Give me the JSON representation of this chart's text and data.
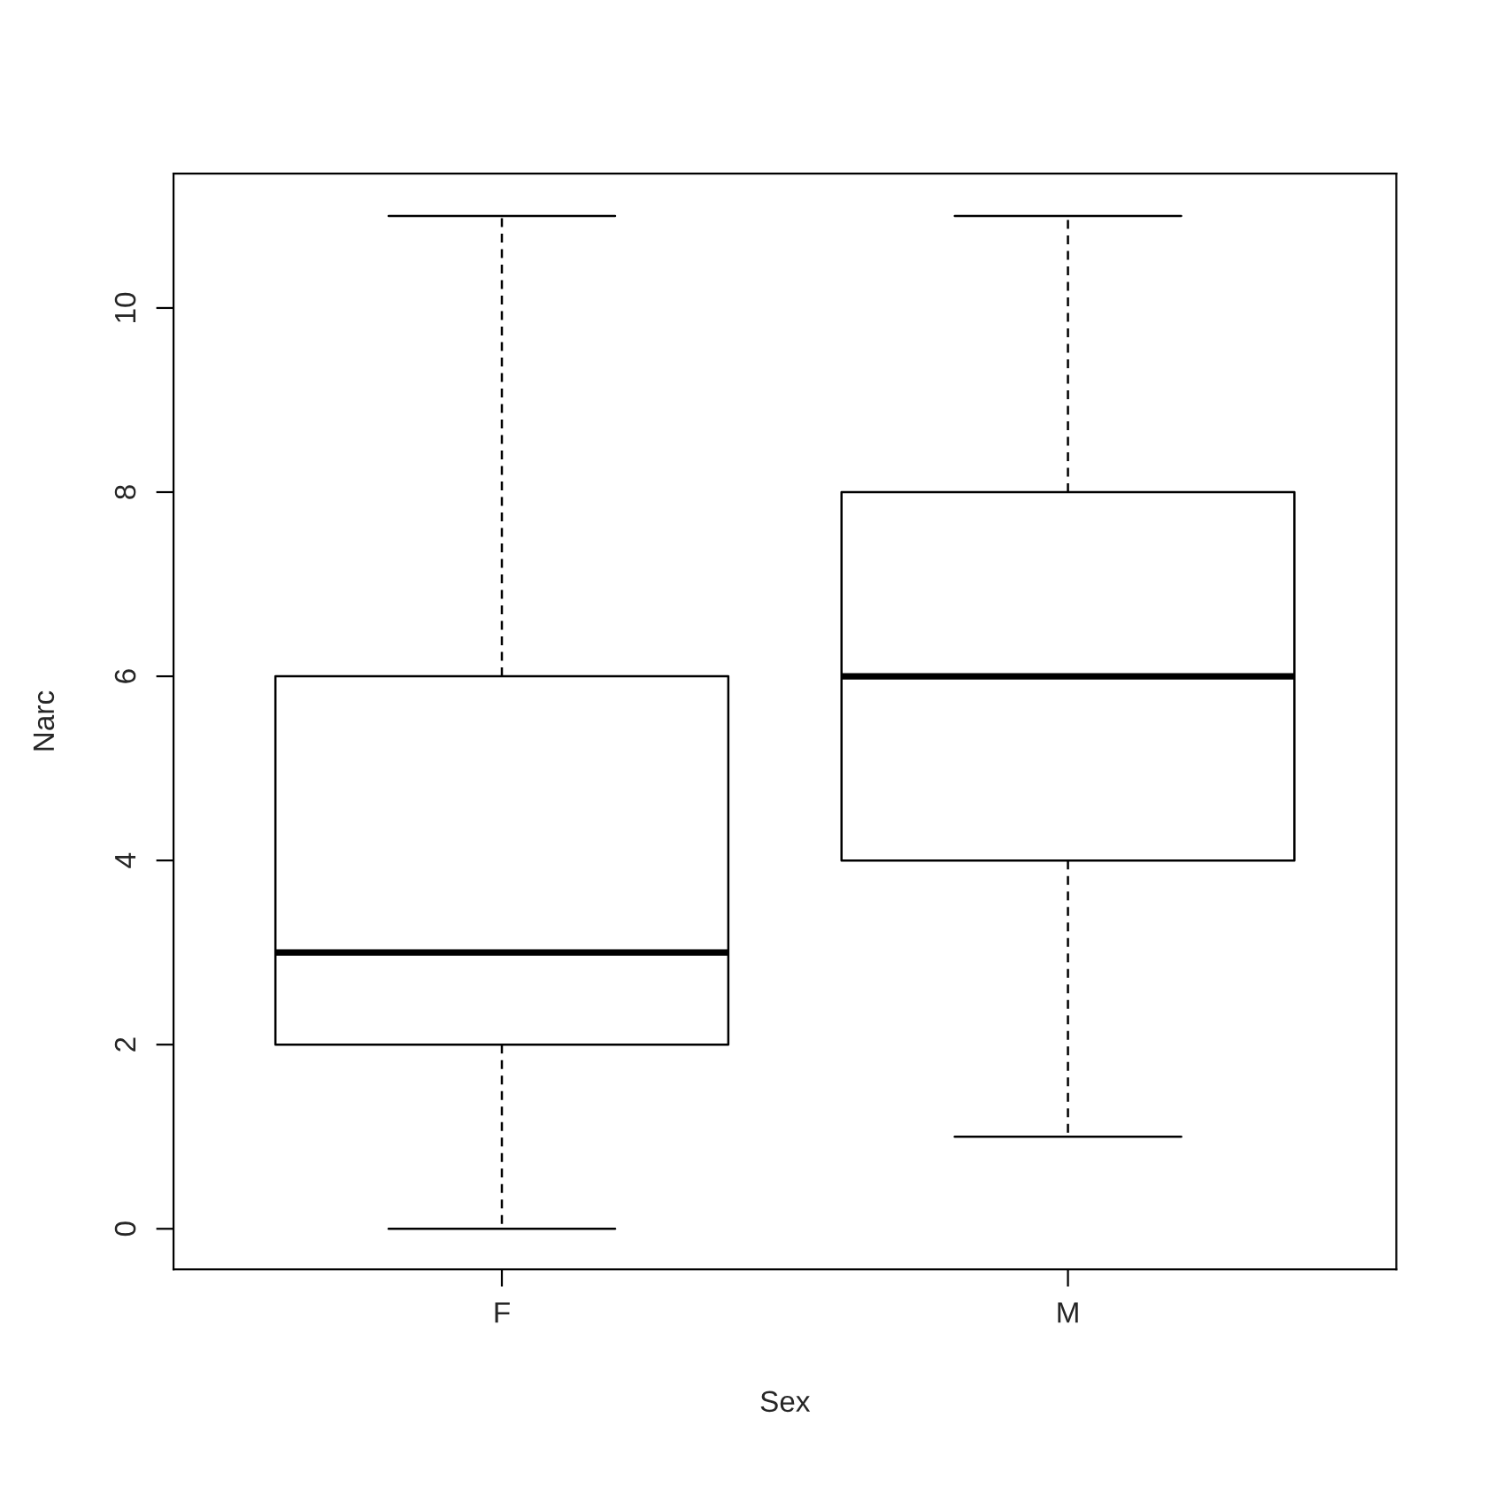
{
  "chart_data": {
    "type": "box",
    "xlabel": "Sex",
    "ylabel": "Narc",
    "categories": [
      "F",
      "M"
    ],
    "boxes": [
      {
        "low": 0,
        "q1": 2,
        "median": 3,
        "q3": 6,
        "high": 11
      },
      {
        "low": 1,
        "q1": 4,
        "median": 6,
        "q3": 8,
        "high": 11
      }
    ],
    "ylim": [
      -0.44,
      11.46
    ],
    "yticks": [
      0,
      2,
      4,
      6,
      8,
      10
    ]
  }
}
